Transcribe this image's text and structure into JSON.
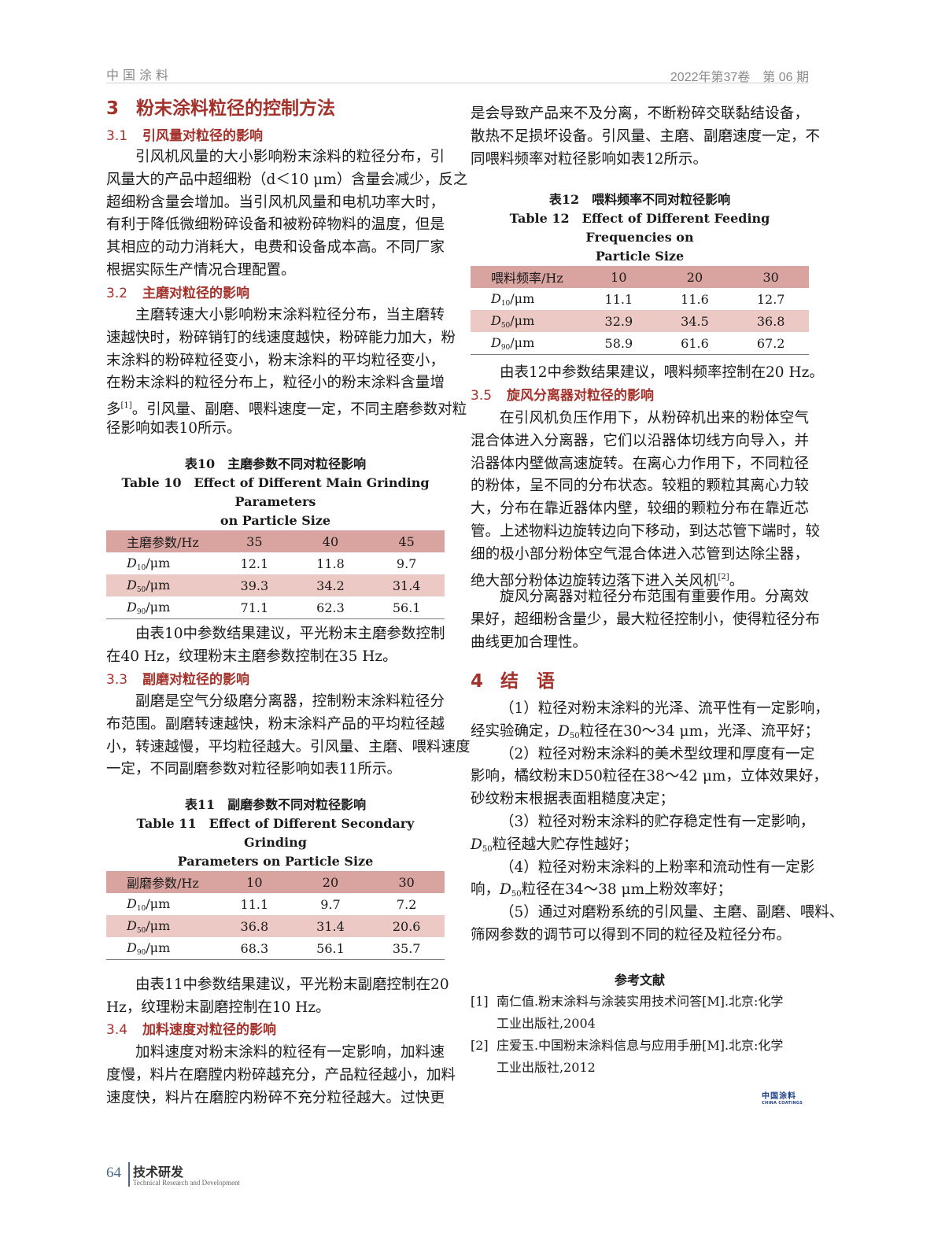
{
  "header": {
    "journal": "中国涂料",
    "issue": "2022年第37卷　第 06 期"
  },
  "footer": {
    "page": "64",
    "section_cn": "技术研发",
    "section_en": "Technical Research and Development"
  },
  "logo": {
    "cn": "中国涂料",
    "en": "CHINA COATINGS"
  },
  "colors": {
    "heading": "#a3322b",
    "table_header": "#d9a3a0",
    "table_alt_row": "#ecc9c5"
  },
  "sec3": {
    "num": "3",
    "title": "粉末涂料粒径的控制方法"
  },
  "s31": {
    "num": "3.1",
    "title": "引风量对粒径的影响"
  },
  "p1": [
    "引风机风量的大小影响粉末涂料的粒径分布，引",
    "风量大的产品中超细粉（d＜10 μm）含量会减少，反之",
    "超细粉含量会增加。当引风机风量和电机功率大时，",
    "有利于降低微细粉碎设备和被粉碎物料的温度，但是",
    "其相应的动力消耗大，电费和设备成本高。不同厂家",
    "根据实际生产情况合理配置。"
  ],
  "s32": {
    "num": "3.2",
    "title": "主磨对粒径的影响"
  },
  "p2": [
    "主磨转速大小影响粉末涂料粒径分布，当主磨转",
    "速越快时，粉碎销钉的线速度越快，粉碎能力加大，粉",
    "末涂料的粉碎粒径变小，粉末涂料的平均粒径变小，",
    "在粉末涂料的粒径分布上，粒径小的粉末涂料含量增",
    "多^{[1]}。引风量、副磨、喂料速度一定，不同主磨参数对粒",
    "径影响如表10所示。"
  ],
  "table10": {
    "caption_cn": "表10　主磨参数不同对粒径影响",
    "caption_en": [
      "Table 10　Effect of Different Main Grinding Parameters",
      "on Particle Size"
    ],
    "header": [
      "主磨参数/Hz",
      "35",
      "40",
      "45"
    ],
    "rows": [
      [
        "D_{10}/μm",
        "12.1",
        "11.8",
        "9.7"
      ],
      [
        "D_{50}/μm",
        "39.3",
        "34.2",
        "31.4"
      ],
      [
        "D_{90}/μm",
        "71.1",
        "62.3",
        "56.1"
      ]
    ]
  },
  "p3": [
    "由表10中参数结果建议，平光粉末主磨参数控制",
    "在40 Hz，纹理粉末主磨参数控制在35 Hz。"
  ],
  "s33": {
    "num": "3.3",
    "title": "副磨对粒径的影响"
  },
  "p4": [
    "副磨是空气分级磨分离器，控制粉末涂料粒径分",
    "布范围。副磨转速越快，粉末涂料产品的平均粒径越",
    "小，转速越慢，平均粒径越大。引风量、主磨、喂料速度",
    "一定，不同副磨参数对粒径影响如表11所示。"
  ],
  "table11": {
    "caption_cn": "表11　副磨参数不同对粒径影响",
    "caption_en": [
      "Table 11　Effect of Different Secondary Grinding",
      "Parameters on Particle Size"
    ],
    "header": [
      "副磨参数/Hz",
      "10",
      "20",
      "30"
    ],
    "rows": [
      [
        "D_{10}/μm",
        "11.1",
        "9.7",
        "7.2"
      ],
      [
        "D_{50}/μm",
        "36.8",
        "31.4",
        "20.6"
      ],
      [
        "D_{90}/μm",
        "68.3",
        "56.1",
        "35.7"
      ]
    ]
  },
  "p5": [
    "由表11中参数结果建议，平光粉末副磨控制在20",
    "Hz，纹理粉末副磨控制在10 Hz。"
  ],
  "s34": {
    "num": "3.4",
    "title": "加料速度对粒径的影响"
  },
  "p6": [
    "加料速度对粉末涂料的粒径有一定影响，加料速",
    "度慢，料片在磨膛内粉碎越充分，产品粒径越小，加料",
    "速度快，料片在磨腔内粉碎不充分粒径越大。过快更"
  ],
  "p6b": [
    "是会导致产品来不及分离，不断粉碎交联黏结设备，",
    "散热不足损坏设备。引风量、主磨、副磨速度一定，不",
    "同喂料频率对粒径影响如表12所示。"
  ],
  "table12": {
    "caption_cn": "表12　喂料频率不同对粒径影响",
    "caption_en": [
      "Table 12　Effect of Different Feeding Frequencies on",
      "Particle Size"
    ],
    "header": [
      "喂料频率/Hz",
      "10",
      "20",
      "30"
    ],
    "rows": [
      [
        "D_{10}/μm",
        "11.1",
        "11.6",
        "12.7"
      ],
      [
        "D_{50}/μm",
        "32.9",
        "34.5",
        "36.8"
      ],
      [
        "D_{90}/μm",
        "58.9",
        "61.6",
        "67.2"
      ]
    ]
  },
  "p7": [
    "由表12中参数结果建议，喂料频率控制在20 Hz。"
  ],
  "s35": {
    "num": "3.5",
    "title": "旋风分离器对粒径的影响"
  },
  "p8": [
    "在引风机负压作用下，从粉碎机出来的粉体空气",
    "混合体进入分离器，它们以沿器体切线方向导入，并",
    "沿器体内壁做高速旋转。在离心力作用下，不同粒径",
    "的粉体，呈不同的分布状态。较粗的颗粒其离心力较",
    "大，分布在靠近器体内壁，较细的颗粒分布在靠近芯",
    "管。上述物料边旋转边向下移动，到达芯管下端时，较",
    "细的极小部分粉体空气混合体进入芯管到达除尘器，",
    "绝大部分粉体边旋转边落下进入关风机^{[2]}。"
  ],
  "p9": [
    "旋风分离器对粒径分布范围有重要作用。分离效",
    "果好，超细粉含量少，最大粒径控制小，使得粒径分布",
    "曲线更加合理性。"
  ],
  "sec4": {
    "num": "4",
    "title": "结　语"
  },
  "conclusions": [
    [
      "（1）粒径对粉末涂料的光泽、流平性有一定影响，",
      "经实验确定，D_{50}粒径在30～34 μm，光泽、流平好；"
    ],
    [
      "（2）粒径对粉末涂料的美术型纹理和厚度有一定",
      "影响，橘纹粉末D50粒径在38～42 μm，立体效果好，",
      "砂纹粉末根据表面粗糙度决定；"
    ],
    [
      "（3）粒径对粉末涂料的贮存稳定性有一定影响，",
      "D_{50}粒径越大贮存性越好；"
    ],
    [
      "（4）粒径对粉末涂料的上粉率和流动性有一定影",
      "响，D_{50}粒径在34～38 μm上粉效率好；"
    ],
    [
      "（5）通过对磨粉系统的引风量、主磨、副磨、喂料、",
      "筛网参数的调节可以得到不同的粒径及粒径分布。"
    ]
  ],
  "references": {
    "title": "参考文献",
    "items": [
      {
        "num": "[1]",
        "lines": [
          "南仁值.粉末涂料与涂装实用技术问答[M].北京:化学",
          "工业出版社,2004"
        ]
      },
      {
        "num": "[2]",
        "lines": [
          "庄爱玉.中国粉末涂料信息与应用手册[M].北京:化学",
          "工业出版社,2012"
        ]
      }
    ]
  }
}
